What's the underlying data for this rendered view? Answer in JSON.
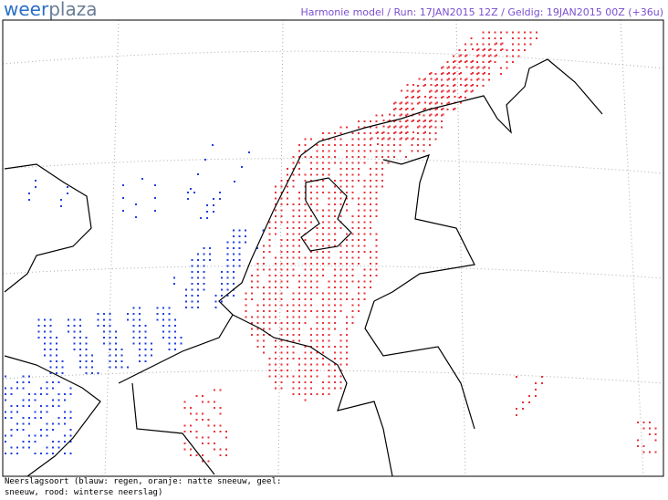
{
  "logo": {
    "part1": "weer",
    "part2": "plaza"
  },
  "header": "Harmonie model / Run: 17JAN2015 12Z / Geldig: 19JAN2015 00Z (+36u)",
  "legend": {
    "line1": "Neerslagsoort (blauw: regen, oranje: natte sneeuw, geel:",
    "line2": "sneeuw, rood: winterse neerslag)"
  }
}
